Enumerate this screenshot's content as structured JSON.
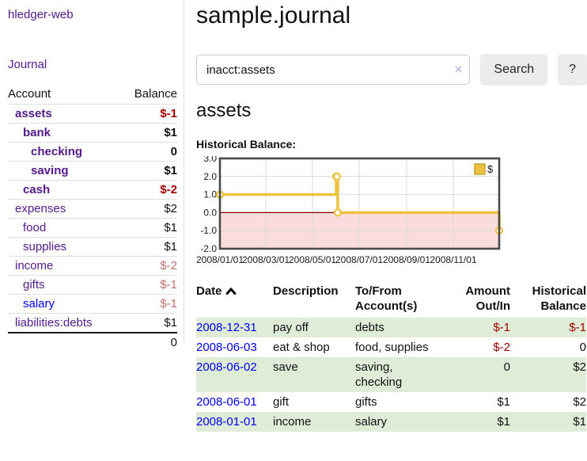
{
  "colors": {
    "link_purple": "#551a8b",
    "link_blue": "#0000ee",
    "negative_strong": "#a40000",
    "negative_muted": "#c56f6f",
    "row_stripe_green": "#dfecd8",
    "chart_line_gold": "#edc240",
    "chart_negative_region_pink": "#fbdcdc",
    "chart_zero_line_red": "#8b0000",
    "chart_grid_gray": "#d9d9d9",
    "chart_border_gray": "#4a4a4a"
  },
  "sidebar": {
    "app_title": "hledger-web",
    "nav_journal_label": "Journal",
    "accounts_table": {
      "account_header": "Account",
      "balance_header": "Balance",
      "rows": [
        {
          "name": "assets",
          "indent": 1,
          "bold": true,
          "blue": false,
          "balance": "$-1",
          "balance_class": "neg"
        },
        {
          "name": "bank",
          "indent": 2,
          "bold": true,
          "blue": false,
          "balance": "$1",
          "balance_class": ""
        },
        {
          "name": "checking",
          "indent": 3,
          "bold": true,
          "blue": false,
          "balance": "0",
          "balance_class": ""
        },
        {
          "name": "saving",
          "indent": 3,
          "bold": true,
          "blue": false,
          "balance": "$1",
          "balance_class": ""
        },
        {
          "name": "cash",
          "indent": 2,
          "bold": true,
          "blue": false,
          "balance": "$-2",
          "balance_class": "neg"
        },
        {
          "name": "expenses",
          "indent": 1,
          "bold": false,
          "blue": false,
          "balance": "$2",
          "balance_class": ""
        },
        {
          "name": "food",
          "indent": 2,
          "bold": false,
          "blue": false,
          "balance": "$1",
          "balance_class": ""
        },
        {
          "name": "supplies",
          "indent": 2,
          "bold": false,
          "blue": false,
          "balance": "$1",
          "balance_class": ""
        },
        {
          "name": "income",
          "indent": 1,
          "bold": false,
          "blue": false,
          "balance": "$-2",
          "balance_class": "neg-muted"
        },
        {
          "name": "gifts",
          "indent": 2,
          "bold": false,
          "blue": false,
          "balance": "$-1",
          "balance_class": "neg-muted"
        },
        {
          "name": "salary",
          "indent": 2,
          "bold": false,
          "blue": true,
          "balance": "$-1",
          "balance_class": "neg-muted"
        },
        {
          "name": "liabilities:debts",
          "indent": 1,
          "bold": false,
          "blue": false,
          "balance": "$1",
          "balance_class": ""
        }
      ],
      "total": "0"
    }
  },
  "main": {
    "title": "sample.journal",
    "search": {
      "value": "inacct:assets",
      "clear_icon": "×",
      "button_label": "Search",
      "help_label": "?"
    },
    "account_heading": "assets",
    "chart_label": "Historical Balance:"
  },
  "chart_data": {
    "type": "line",
    "title": "Historical Balance:",
    "step": true,
    "x_range": [
      "2008-01-01",
      "2008-12-31"
    ],
    "x_ticks": [
      "2008/01/01",
      "2008/03/01",
      "2008/05/01",
      "2008/07/01",
      "2008/09/01",
      "2008/11/01"
    ],
    "y_ticks": [
      3.0,
      2.0,
      1.0,
      0.0,
      -1.0,
      -2.0
    ],
    "ylim": [
      -2,
      3
    ],
    "grid": true,
    "legend_position": "top-right",
    "series": [
      {
        "name": "$",
        "points": [
          {
            "x": "2008-01-01",
            "y": 1
          },
          {
            "x": "2008-06-01",
            "y": 2
          },
          {
            "x": "2008-06-02",
            "y": 2
          },
          {
            "x": "2008-06-03",
            "y": 0
          },
          {
            "x": "2008-12-31",
            "y": -1
          }
        ]
      }
    ]
  },
  "register_table": {
    "headers": [
      {
        "lines": [
          "Date"
        ],
        "sort": "asc",
        "align": "left"
      },
      {
        "lines": [
          "Description"
        ],
        "align": "left"
      },
      {
        "lines": [
          "To/From",
          "Account(s)"
        ],
        "align": "left"
      },
      {
        "lines": [
          "Amount",
          "Out/In"
        ],
        "align": "right"
      },
      {
        "lines": [
          "Historical",
          "Balance"
        ],
        "align": "right"
      }
    ],
    "rows": [
      {
        "date": "2008-12-31",
        "description": "pay off",
        "accounts": "debts",
        "amount": "$-1",
        "amount_negative": true,
        "balance": "$-1",
        "balance_negative": true
      },
      {
        "date": "2008-06-03",
        "description": "eat & shop",
        "accounts": "food, supplies",
        "amount": "$-2",
        "amount_negative": true,
        "balance": "0",
        "balance_negative": false
      },
      {
        "date": "2008-06-02",
        "description": "save",
        "accounts": "saving, checking",
        "amount": "0",
        "amount_negative": false,
        "balance": "$2",
        "balance_negative": false
      },
      {
        "date": "2008-06-01",
        "description": "gift",
        "accounts": "gifts",
        "amount": "$1",
        "amount_negative": false,
        "balance": "$2",
        "balance_negative": false
      },
      {
        "date": "2008-01-01",
        "description": "income",
        "accounts": "salary",
        "amount": "$1",
        "amount_negative": false,
        "balance": "$1",
        "balance_negative": false
      }
    ]
  }
}
